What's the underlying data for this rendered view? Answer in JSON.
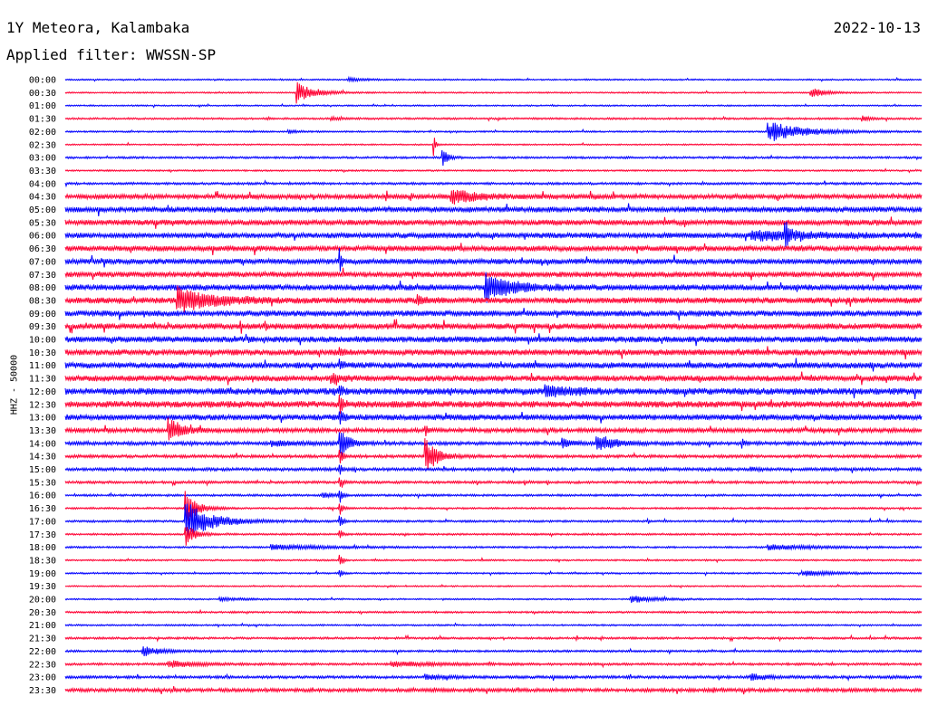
{
  "header": {
    "station": "1Y Meteora, Kalambaka",
    "date": "2022-10-13",
    "filter": "Applied filter: WWSSN-SP"
  },
  "chart_data": {
    "type": "line",
    "title": "1Y Meteora, Kalambaka",
    "ylabel": "HHZ - 50000",
    "colors": [
      "#0000ff",
      "#ff0033"
    ],
    "rows": [
      {
        "label": "00:00",
        "noise": 0.6,
        "events": [
          {
            "t": 0.33,
            "amp": 2,
            "dur": 0.02
          }
        ]
      },
      {
        "label": "00:30",
        "noise": 0.6,
        "events": [
          {
            "t": 0.27,
            "amp": 12,
            "dur": 0.02
          },
          {
            "t": 0.87,
            "amp": 6,
            "dur": 0.015
          }
        ]
      },
      {
        "label": "01:00",
        "noise": 0.6,
        "events": []
      },
      {
        "label": "01:30",
        "noise": 0.8,
        "events": [
          {
            "t": 0.31,
            "amp": 2,
            "dur": 0.01
          },
          {
            "t": 0.93,
            "amp": 3,
            "dur": 0.01
          }
        ]
      },
      {
        "label": "02:00",
        "noise": 0.7,
        "events": [
          {
            "t": 0.82,
            "amp": 12,
            "dur": 0.04
          },
          {
            "t": 0.26,
            "amp": 2,
            "dur": 0.01
          }
        ]
      },
      {
        "label": "02:30",
        "noise": 0.6,
        "events": [
          {
            "t": 0.43,
            "amp": 14,
            "dur": 0.002
          }
        ]
      },
      {
        "label": "03:00",
        "noise": 0.9,
        "events": [
          {
            "t": 0.44,
            "amp": 12,
            "dur": 0.006
          }
        ]
      },
      {
        "label": "03:30",
        "noise": 0.7,
        "events": []
      },
      {
        "label": "04:00",
        "noise": 1.0,
        "events": []
      },
      {
        "label": "04:30",
        "noise": 2.0,
        "events": [
          {
            "t": 0.45,
            "amp": 8,
            "dur": 0.03
          }
        ]
      },
      {
        "label": "05:00",
        "noise": 2.3,
        "events": []
      },
      {
        "label": "05:30",
        "noise": 2.3,
        "events": []
      },
      {
        "label": "06:00",
        "noise": 2.3,
        "events": [
          {
            "t": 0.84,
            "amp": 20,
            "dur": 0.004
          },
          {
            "t": 0.8,
            "amp": 5,
            "dur": 0.08
          }
        ]
      },
      {
        "label": "06:30",
        "noise": 2.3,
        "events": []
      },
      {
        "label": "07:00",
        "noise": 2.3,
        "events": [
          {
            "t": 0.32,
            "amp": 16,
            "dur": 0.002
          }
        ]
      },
      {
        "label": "07:30",
        "noise": 2.3,
        "events": []
      },
      {
        "label": "08:00",
        "noise": 2.5,
        "events": [
          {
            "t": 0.49,
            "amp": 16,
            "dur": 0.03
          }
        ]
      },
      {
        "label": "08:30",
        "noise": 2.5,
        "events": [
          {
            "t": 0.13,
            "amp": 14,
            "dur": 0.04
          },
          {
            "t": 0.41,
            "amp": 6,
            "dur": 0.01
          }
        ]
      },
      {
        "label": "09:00",
        "noise": 2.5,
        "events": []
      },
      {
        "label": "09:30",
        "noise": 2.5,
        "events": []
      },
      {
        "label": "10:00",
        "noise": 2.5,
        "events": []
      },
      {
        "label": "10:30",
        "noise": 2.5,
        "events": [
          {
            "t": 0.32,
            "amp": 6,
            "dur": 0.004
          }
        ]
      },
      {
        "label": "11:00",
        "noise": 2.5,
        "events": [
          {
            "t": 0.32,
            "amp": 6,
            "dur": 0.004
          }
        ]
      },
      {
        "label": "11:30",
        "noise": 2.5,
        "events": [
          {
            "t": 0.31,
            "amp": 6,
            "dur": 0.01
          }
        ]
      },
      {
        "label": "12:00",
        "noise": 2.8,
        "events": [
          {
            "t": 0.56,
            "amp": 6,
            "dur": 0.03
          },
          {
            "t": 0.32,
            "amp": 8,
            "dur": 0.004
          }
        ]
      },
      {
        "label": "12:30",
        "noise": 2.8,
        "events": [
          {
            "t": 0.32,
            "amp": 10,
            "dur": 0.004
          }
        ]
      },
      {
        "label": "13:00",
        "noise": 2.5,
        "events": [
          {
            "t": 0.32,
            "amp": 10,
            "dur": 0.004
          }
        ]
      },
      {
        "label": "13:30",
        "noise": 1.8,
        "events": [
          {
            "t": 0.12,
            "amp": 16,
            "dur": 0.015
          },
          {
            "t": 0.42,
            "amp": 10,
            "dur": 0.002
          }
        ]
      },
      {
        "label": "14:00",
        "noise": 1.5,
        "events": [
          {
            "t": 0.32,
            "amp": 18,
            "dur": 0.01
          },
          {
            "t": 0.62,
            "amp": 10,
            "dur": 0.02
          },
          {
            "t": 0.58,
            "amp": 6,
            "dur": 0.01
          },
          {
            "t": 0.79,
            "amp": 6,
            "dur": 0.003
          },
          {
            "t": 0.24,
            "amp": 3,
            "dur": 0.03
          }
        ]
      },
      {
        "label": "14:30",
        "noise": 1.3,
        "events": [
          {
            "t": 0.42,
            "amp": 22,
            "dur": 0.012
          },
          {
            "t": 0.32,
            "amp": 12,
            "dur": 0.003
          }
        ]
      },
      {
        "label": "15:00",
        "noise": 1.3,
        "events": [
          {
            "t": 0.32,
            "amp": 8,
            "dur": 0.003
          },
          {
            "t": 0.8,
            "amp": 2,
            "dur": 0.01
          }
        ]
      },
      {
        "label": "15:30",
        "noise": 1.1,
        "events": [
          {
            "t": 0.32,
            "amp": 8,
            "dur": 0.003
          }
        ]
      },
      {
        "label": "16:00",
        "noise": 0.9,
        "events": [
          {
            "t": 0.3,
            "amp": 4,
            "dur": 0.01
          },
          {
            "t": 0.32,
            "amp": 10,
            "dur": 0.003
          }
        ]
      },
      {
        "label": "16:30",
        "noise": 0.8,
        "events": [
          {
            "t": 0.14,
            "amp": 22,
            "dur": 0.012
          },
          {
            "t": 0.32,
            "amp": 10,
            "dur": 0.003
          }
        ]
      },
      {
        "label": "17:00",
        "noise": 0.9,
        "events": [
          {
            "t": 0.14,
            "amp": 22,
            "dur": 0.03
          },
          {
            "t": 0.32,
            "amp": 12,
            "dur": 0.003
          }
        ]
      },
      {
        "label": "17:30",
        "noise": 0.8,
        "events": [
          {
            "t": 0.14,
            "amp": 14,
            "dur": 0.01
          },
          {
            "t": 0.32,
            "amp": 8,
            "dur": 0.003
          }
        ]
      },
      {
        "label": "18:00",
        "noise": 0.8,
        "events": [
          {
            "t": 0.24,
            "amp": 3,
            "dur": 0.06
          },
          {
            "t": 0.82,
            "amp": 3,
            "dur": 0.05
          }
        ]
      },
      {
        "label": "18:30",
        "noise": 0.7,
        "events": [
          {
            "t": 0.32,
            "amp": 10,
            "dur": 0.003
          }
        ]
      },
      {
        "label": "19:00",
        "noise": 0.7,
        "events": [
          {
            "t": 0.86,
            "amp": 3,
            "dur": 0.04
          },
          {
            "t": 0.32,
            "amp": 6,
            "dur": 0.003
          }
        ]
      },
      {
        "label": "19:30",
        "noise": 0.6,
        "events": []
      },
      {
        "label": "20:00",
        "noise": 0.6,
        "events": [
          {
            "t": 0.66,
            "amp": 4,
            "dur": 0.03
          },
          {
            "t": 0.18,
            "amp": 2,
            "dur": 0.03
          }
        ]
      },
      {
        "label": "20:30",
        "noise": 0.8,
        "events": []
      },
      {
        "label": "21:00",
        "noise": 0.7,
        "events": []
      },
      {
        "label": "21:30",
        "noise": 0.9,
        "events": []
      },
      {
        "label": "22:00",
        "noise": 0.9,
        "events": [
          {
            "t": 0.09,
            "amp": 6,
            "dur": 0.02
          }
        ]
      },
      {
        "label": "22:30",
        "noise": 1.0,
        "events": [
          {
            "t": 0.12,
            "amp": 4,
            "dur": 0.03
          },
          {
            "t": 0.38,
            "amp": 3,
            "dur": 0.05
          }
        ]
      },
      {
        "label": "23:00",
        "noise": 1.2,
        "events": [
          {
            "t": 0.42,
            "amp": 3,
            "dur": 0.02
          },
          {
            "t": 0.8,
            "amp": 4,
            "dur": 0.02
          }
        ]
      },
      {
        "label": "23:30",
        "noise": 1.5,
        "events": []
      }
    ]
  }
}
